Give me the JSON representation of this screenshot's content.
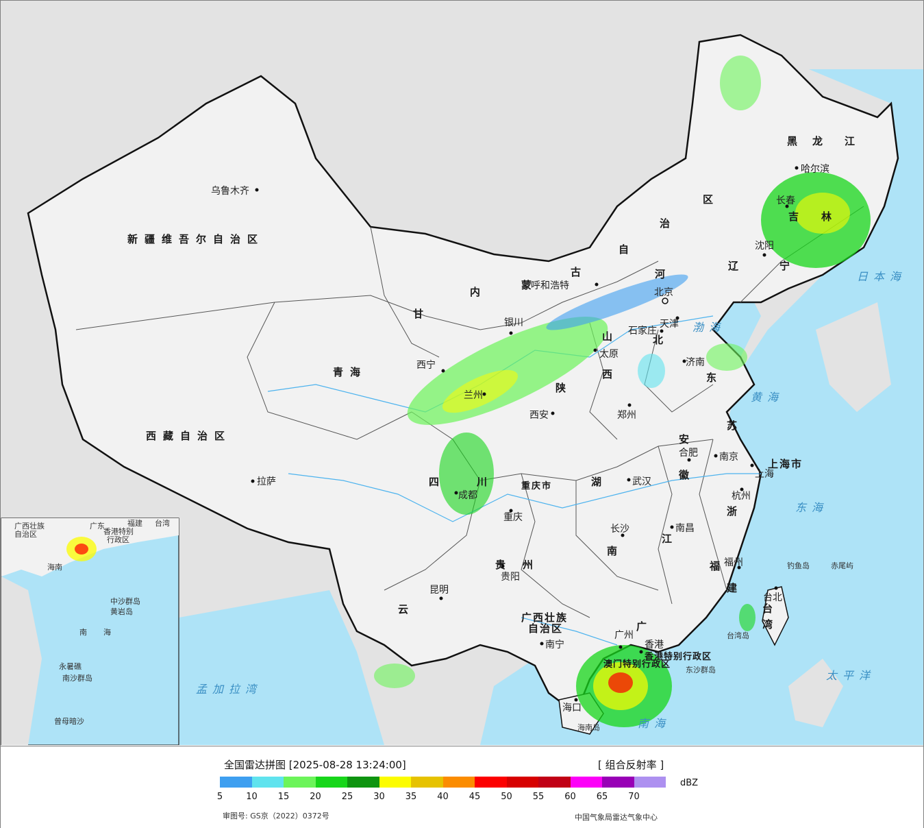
{
  "legend": {
    "title": "全国雷达拼图 [2025-08-28 13:24:00]",
    "product": "[ 组合反射率 ]",
    "unit": "dBZ",
    "ticks": [
      "5",
      "10",
      "15",
      "20",
      "25",
      "30",
      "35",
      "40",
      "45",
      "50",
      "55",
      "60",
      "65",
      "70"
    ],
    "colors": [
      "#3e9ff0",
      "#60e3ee",
      "#6cf45a",
      "#17d61a",
      "#0e9410",
      "#fcfc00",
      "#e6c200",
      "#fb8c00",
      "#fc0000",
      "#d70000",
      "#c10015",
      "#fc00f8",
      "#9800b6",
      "#ad90f0"
    ],
    "approval": "审图号: GS京（2022）0372号",
    "source": "中国气象局雷达气象中心"
  },
  "map": {
    "colors": {
      "sea": "#aee3f7",
      "land": "#f2f2f2",
      "foreign": "#e3e3e3",
      "border": "#111111",
      "river": "#4db3ee"
    },
    "regions": [
      "新疆维吾尔自治区",
      "西藏自治区",
      "青海",
      "甘",
      "内",
      "蒙",
      "古",
      "自",
      "治",
      "区",
      "黑",
      "龙",
      "江",
      "辽",
      "宁",
      "吉",
      "林",
      "河",
      "北",
      "山",
      "西",
      "东",
      "陕",
      "四",
      "川",
      "重庆市",
      "湖",
      "南",
      "贵",
      "州",
      "云",
      "广西壮族",
      "自治区",
      "广",
      "江",
      "苏",
      "安",
      "徽",
      "浙",
      "福",
      "建",
      "台",
      "湾",
      "上海市",
      "香港特别行政区",
      "澳门特别行政区"
    ],
    "cities": [
      "乌鲁木齐",
      "拉萨",
      "西宁",
      "兰州",
      "银川",
      "呼和浩特",
      "北京",
      "天津",
      "石家庄",
      "太原",
      "济南",
      "郑州",
      "西安",
      "成都",
      "重庆",
      "武汉",
      "合肥",
      "南京",
      "上海",
      "杭州",
      "长沙",
      "南昌",
      "贵阳",
      "昆明",
      "南宁",
      "广州",
      "香港",
      "福州",
      "台北",
      "哈尔滨",
      "长春",
      "沈阳",
      "海口"
    ],
    "seas": [
      "日本海",
      "渤海",
      "黄海",
      "东海",
      "太平洋",
      "南海",
      "孟加拉湾"
    ],
    "islands": [
      "钓鱼岛",
      "赤尾屿",
      "台湾岛",
      "东沙群岛",
      "海南岛",
      "中沙群岛",
      "黄岩岛",
      "永暑礁",
      "南沙群岛",
      "曾母暗沙"
    ],
    "inset_labels": [
      "广西壮族",
      "自治区",
      "广东",
      "福建",
      "台湾",
      "香港特别",
      "行政区",
      "海南",
      "南",
      "海"
    ]
  }
}
